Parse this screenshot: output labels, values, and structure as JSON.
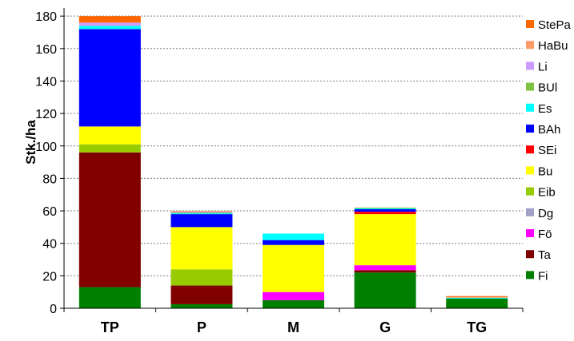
{
  "chart_data": {
    "type": "bar",
    "stacked": true,
    "title": "",
    "xlabel": "",
    "ylabel": "Stk./ha",
    "ylim": [
      0,
      185
    ],
    "yticks": [
      0,
      20,
      40,
      60,
      80,
      100,
      120,
      140,
      160,
      180
    ],
    "categories": [
      "TP",
      "P",
      "M",
      "G",
      "TG"
    ],
    "grid": "horizontal dotted",
    "legend_position": "right",
    "series": [
      {
        "name": "Fi",
        "color": "#008000",
        "values": [
          13,
          2.5,
          5,
          22,
          6
        ]
      },
      {
        "name": "Ta",
        "color": "#800000",
        "values": [
          83,
          11.5,
          0,
          1.5,
          0
        ]
      },
      {
        "name": "Fö",
        "color": "#FF00FF",
        "values": [
          0,
          0,
          5,
          3,
          0
        ]
      },
      {
        "name": "Dg",
        "color": "#A0A0C8",
        "values": [
          0,
          0,
          0,
          0,
          0
        ]
      },
      {
        "name": "Eib",
        "color": "#99CC00",
        "values": [
          5,
          10,
          0,
          0,
          0
        ]
      },
      {
        "name": "Bu",
        "color": "#FFFF00",
        "values": [
          11,
          26,
          29,
          31.5,
          0
        ]
      },
      {
        "name": "SEi",
        "color": "#FF0000",
        "values": [
          0,
          0,
          0,
          1.5,
          0
        ]
      },
      {
        "name": "BAh",
        "color": "#0000FF",
        "values": [
          60,
          8,
          3,
          1.5,
          0
        ]
      },
      {
        "name": "Es",
        "color": "#00FFFF",
        "values": [
          2,
          0.5,
          4,
          0.5,
          0.5
        ]
      },
      {
        "name": "BUl",
        "color": "#7FC241",
        "values": [
          0,
          0.5,
          0,
          0.5,
          0
        ]
      },
      {
        "name": "Li",
        "color": "#CC99FF",
        "values": [
          2,
          0.5,
          0,
          0,
          0
        ]
      },
      {
        "name": "HaBu",
        "color": "#FF9966",
        "values": [
          0,
          0.5,
          0,
          0,
          0.5
        ]
      },
      {
        "name": "StePa",
        "color": "#FF6600",
        "values": [
          4,
          0,
          0,
          0,
          0.5
        ]
      }
    ]
  }
}
